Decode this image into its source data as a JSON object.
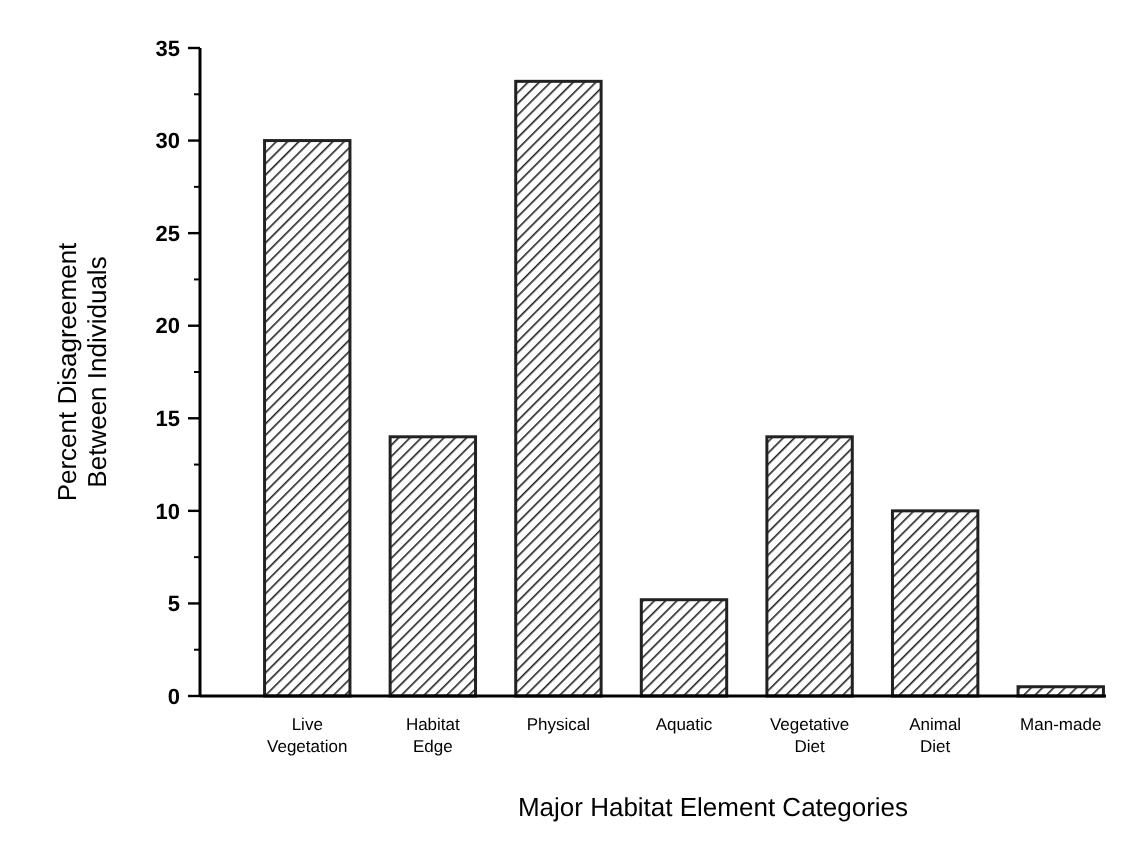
{
  "chart_data": {
    "type": "bar",
    "xlabel": "Major Habitat Element Categories",
    "ylabel": "Percent Disagreement Between Individuals",
    "categories": [
      "Live Vegetation",
      "Habitat Edge",
      "Physical",
      "Aquatic",
      "Vegetative Diet",
      "Animal Diet",
      "Man-made"
    ],
    "values": [
      30,
      14,
      33.2,
      5.2,
      14,
      10,
      0.5
    ],
    "color": "#222222",
    "ylim": [
      0,
      35
    ],
    "yticks": [
      0,
      5,
      10,
      15,
      20,
      25,
      30,
      35
    ],
    "grid": false
  }
}
